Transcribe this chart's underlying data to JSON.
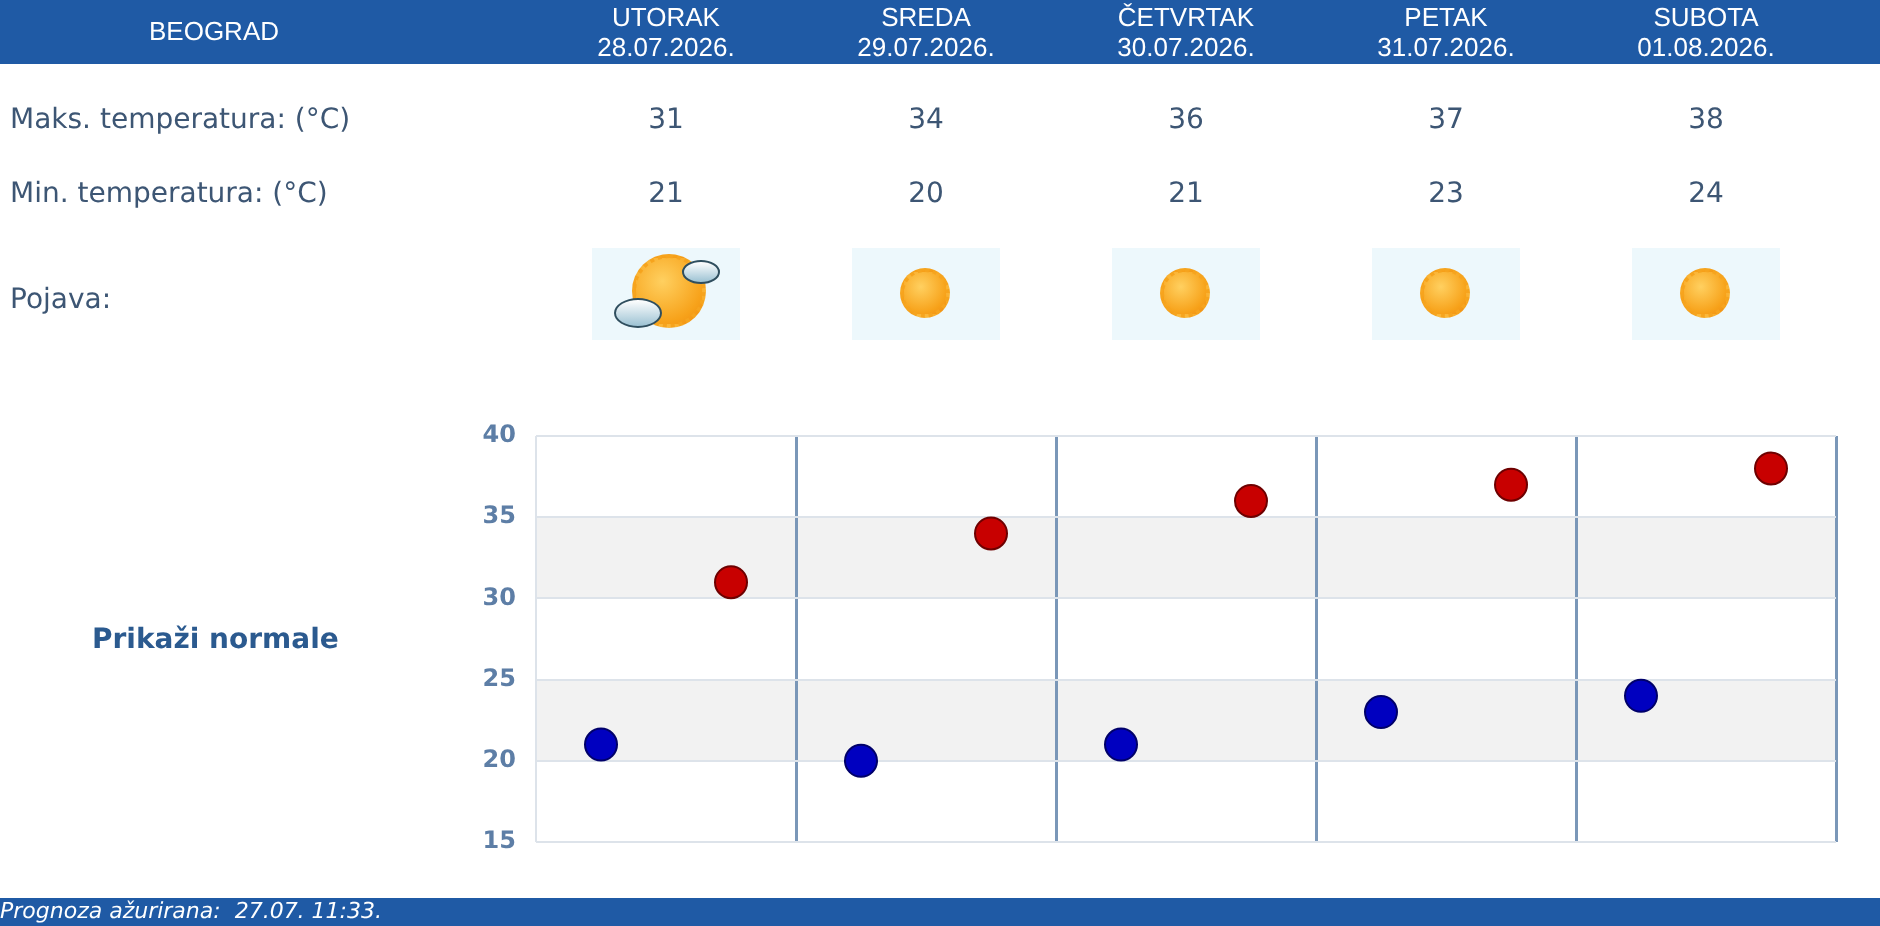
{
  "chart_data": {
    "type": "scatter",
    "title": "BEOGRAD",
    "categories": [
      null,
      null,
      null,
      null,
      null
    ],
    "series": [
      {
        "color": "#c80000",
        "values": [
          31,
          34,
          36,
          37,
          38
        ]
      },
      {
        "color": "#0000c0",
        "values": [
          21,
          20,
          21,
          23,
          24
        ]
      }
    ],
    "ylim": [
      15,
      40
    ],
    "yticks": [
      15,
      20,
      25,
      30,
      35,
      40
    ],
    "grid": true,
    "marker": "circle",
    "data_labels": true,
    "tick_labels": "y",
    "bands": [
      {
        "axis": "y",
        "from": 20,
        "to": 25,
        "color": "#f2f2f2"
      },
      {
        "axis": "y",
        "from": 30,
        "to": 35,
        "color": "#f2f2f2"
      }
    ],
    "annotations": [
      "UTORAK\n28.07.2026.",
      "SREDA\n29.07.2026.",
      "ČETVRTAK\n30.07.2026.",
      "PETAK\n31.07.2026.",
      "SUBOTA\n01.08.2026.",
      "Maks. temperatura: (°C)",
      "Min. temperatura: (°C)",
      "Pojava:",
      "Prikaži normale",
      "Prognoza ažurirana:  27.07. 11:33."
    ]
  }
}
